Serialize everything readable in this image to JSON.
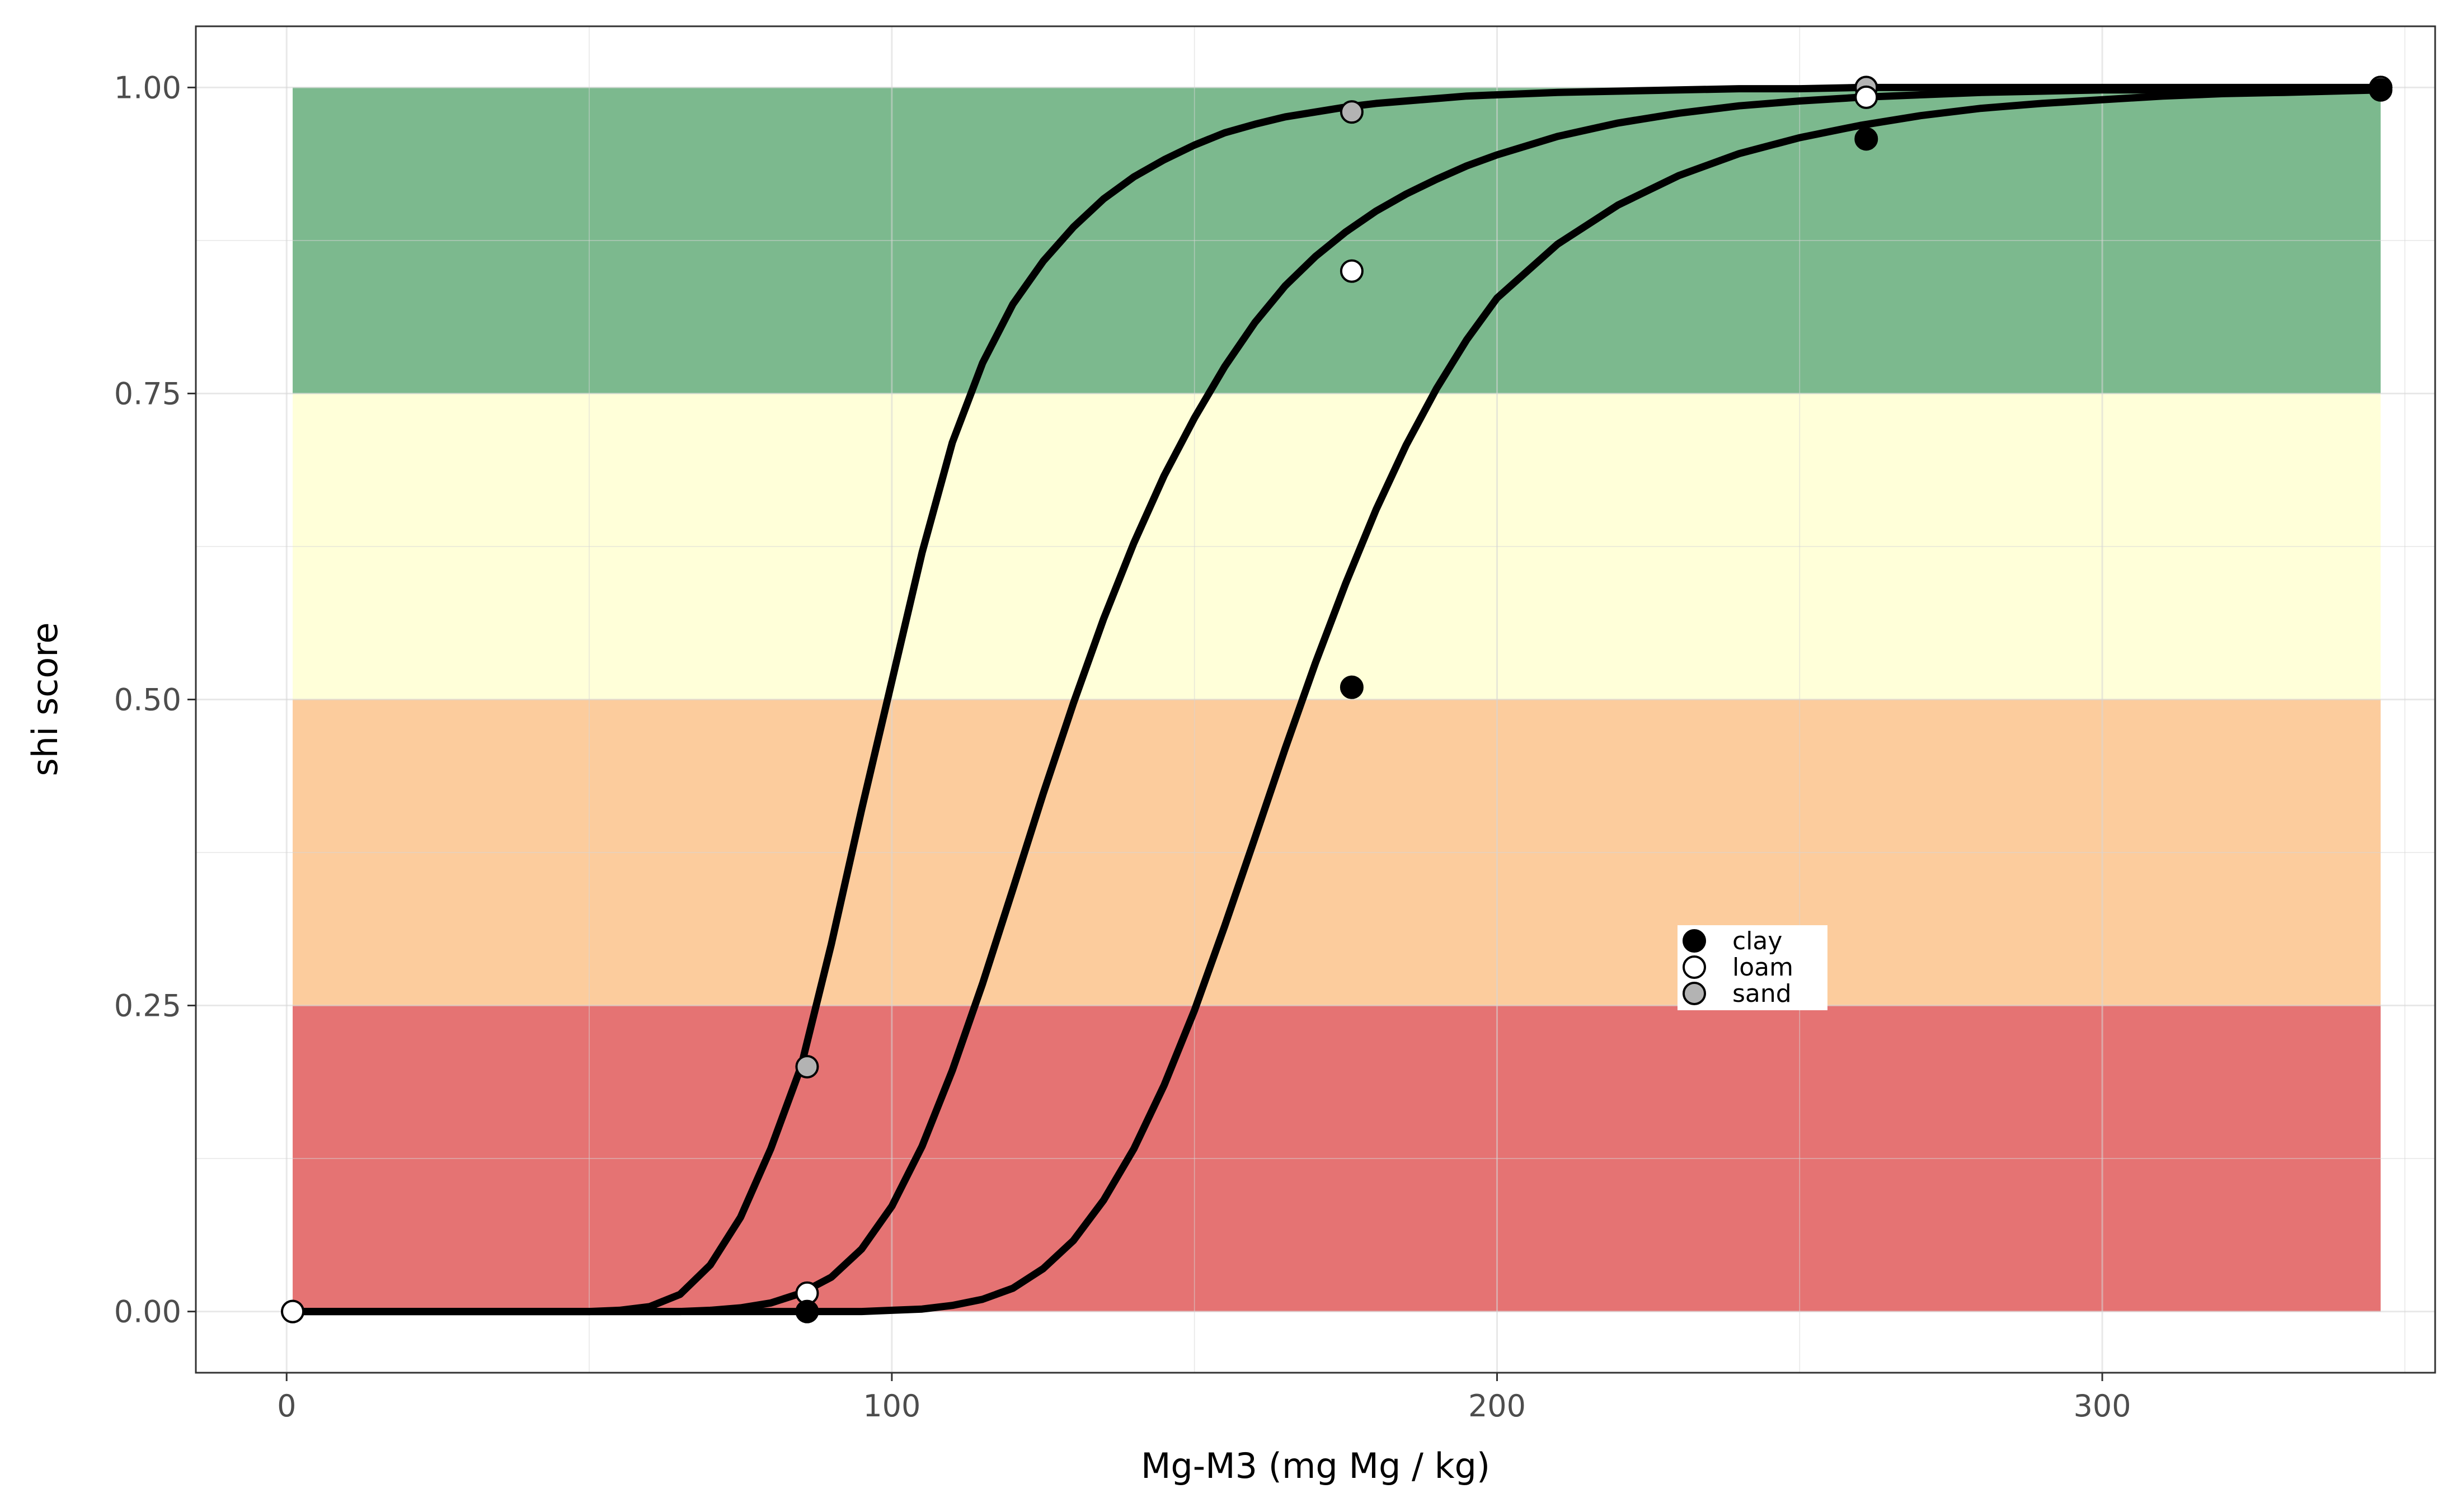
{
  "chart_data": {
    "type": "line",
    "xlabel": "Mg-M3 (mg Mg / kg)",
    "ylabel": "shi score",
    "xlim": [
      -15,
      355
    ],
    "ylim": [
      -0.05,
      1.05
    ],
    "x_ticks": [
      0,
      100,
      200,
      300
    ],
    "x_tick_labels": [
      "0",
      "100",
      "200",
      "300"
    ],
    "y_ticks": [
      0,
      0.25,
      0.5,
      0.75,
      1.0
    ],
    "y_tick_labels": [
      "0.00",
      "0.25",
      "0.50",
      "0.75",
      "1.00"
    ],
    "grid": true,
    "bands": [
      {
        "y0": 0.0,
        "y1": 0.25,
        "x0": 1,
        "x1": 346,
        "color": "#e57373"
      },
      {
        "y0": 0.25,
        "y1": 0.5,
        "x0": 1,
        "x1": 346,
        "color": "#fccc9d"
      },
      {
        "y0": 0.5,
        "y1": 0.75,
        "x0": 1,
        "x1": 346,
        "color": "#ffffd9"
      },
      {
        "y0": 0.75,
        "y1": 1.0,
        "x0": 1,
        "x1": 346,
        "color": "#7cb98e"
      }
    ],
    "curve_x": [
      1,
      10,
      20,
      30,
      40,
      50,
      55,
      60,
      65,
      70,
      75,
      80,
      85,
      90,
      95,
      100,
      105,
      110,
      115,
      120,
      125,
      130,
      135,
      140,
      145,
      150,
      155,
      160,
      165,
      170,
      175,
      180,
      185,
      190,
      195,
      200,
      210,
      220,
      230,
      240,
      250,
      260,
      270,
      280,
      290,
      300,
      310,
      320,
      330,
      346
    ],
    "series": [
      {
        "name": "sand",
        "legend_color": "#b3b3b3",
        "curve_y": [
          0.0,
          0.0,
          0.0,
          0.0,
          0.0,
          0.0,
          0.001,
          0.004,
          0.014,
          0.038,
          0.077,
          0.133,
          0.2,
          0.3,
          0.41,
          0.515,
          0.62,
          0.71,
          0.775,
          0.823,
          0.858,
          0.886,
          0.909,
          0.927,
          0.941,
          0.953,
          0.963,
          0.97,
          0.976,
          0.98,
          0.984,
          0.987,
          0.989,
          0.991,
          0.993,
          0.994,
          0.996,
          0.997,
          0.998,
          0.999,
          0.999,
          1.0,
          1.0,
          1.0,
          1.0,
          1.0,
          1.0,
          1.0,
          1.0,
          1.0
        ],
        "points": [
          {
            "x": 1,
            "y": 0.0
          },
          {
            "x": 86,
            "y": 0.2
          },
          {
            "x": 176,
            "y": 0.98
          },
          {
            "x": 261,
            "y": 1.0
          },
          {
            "x": 346,
            "y": 1.0
          }
        ]
      },
      {
        "name": "loam",
        "legend_color": "#ffffff",
        "curve_y": [
          0.0,
          0.0,
          0.0,
          0.0,
          0.0,
          0.0,
          0.0,
          0.0,
          0.0,
          0.001,
          0.003,
          0.007,
          0.015,
          0.028,
          0.051,
          0.086,
          0.135,
          0.197,
          0.268,
          0.345,
          0.423,
          0.497,
          0.566,
          0.628,
          0.683,
          0.73,
          0.772,
          0.808,
          0.838,
          0.862,
          0.882,
          0.899,
          0.913,
          0.925,
          0.936,
          0.945,
          0.96,
          0.971,
          0.979,
          0.985,
          0.989,
          0.992,
          0.994,
          0.996,
          0.997,
          0.998,
          0.998,
          0.999,
          0.999,
          1.0
        ],
        "points": [
          {
            "x": 1,
            "y": 0.0
          },
          {
            "x": 86,
            "y": 0.015
          },
          {
            "x": 176,
            "y": 0.85
          },
          {
            "x": 261,
            "y": 0.992
          },
          {
            "x": 346,
            "y": 1.0
          }
        ]
      },
      {
        "name": "clay",
        "legend_color": "#000000",
        "curve_y": [
          0.0,
          0.0,
          0.0,
          0.0,
          0.0,
          0.0,
          0.0,
          0.0,
          0.0,
          0.0,
          0.0,
          0.0,
          0.0,
          0.0,
          0.0,
          0.001,
          0.002,
          0.005,
          0.01,
          0.019,
          0.035,
          0.058,
          0.091,
          0.133,
          0.185,
          0.246,
          0.315,
          0.387,
          0.46,
          0.53,
          0.595,
          0.655,
          0.708,
          0.754,
          0.794,
          0.828,
          0.872,
          0.904,
          0.928,
          0.946,
          0.959,
          0.969,
          0.977,
          0.983,
          0.987,
          0.99,
          0.993,
          0.995,
          0.996,
          0.998
        ],
        "points": [
          {
            "x": 86,
            "y": 0.0
          },
          {
            "x": 176,
            "y": 0.51
          },
          {
            "x": 261,
            "y": 0.958
          },
          {
            "x": 346,
            "y": 0.998
          }
        ]
      }
    ],
    "legend": {
      "placement": "inside-lower-right",
      "entries": [
        {
          "label": "clay",
          "color": "#000000"
        },
        {
          "label": "loam",
          "color": "#ffffff"
        },
        {
          "label": "sand",
          "color": "#b3b3b3"
        }
      ]
    }
  }
}
